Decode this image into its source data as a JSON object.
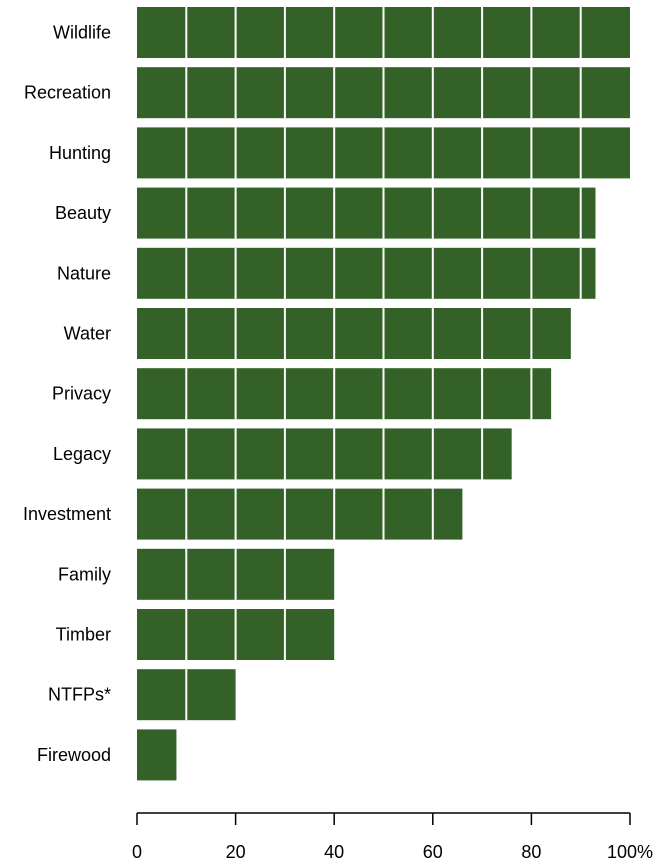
{
  "chart_data": {
    "type": "bar",
    "orientation": "horizontal",
    "categories": [
      "Wildlife",
      "Recreation",
      "Hunting",
      "Beauty",
      "Nature",
      "Water",
      "Privacy",
      "Legacy",
      "Investment",
      "Family",
      "Timber",
      "NTFPs*",
      "Firewood"
    ],
    "values": [
      100,
      100,
      100,
      93,
      93,
      88,
      84,
      76,
      66,
      40,
      40,
      20,
      8
    ],
    "xlim": [
      0,
      100
    ],
    "xticks": [
      "0",
      "20",
      "40",
      "60",
      "80",
      "100%"
    ],
    "xtick_values": [
      0,
      20,
      40,
      60,
      80,
      100
    ],
    "segment_step": 10,
    "bar_color": "#336127",
    "divider_color": "#ffffff",
    "grid": false,
    "legend": "none",
    "title": "",
    "xlabel": "",
    "ylabel": ""
  }
}
